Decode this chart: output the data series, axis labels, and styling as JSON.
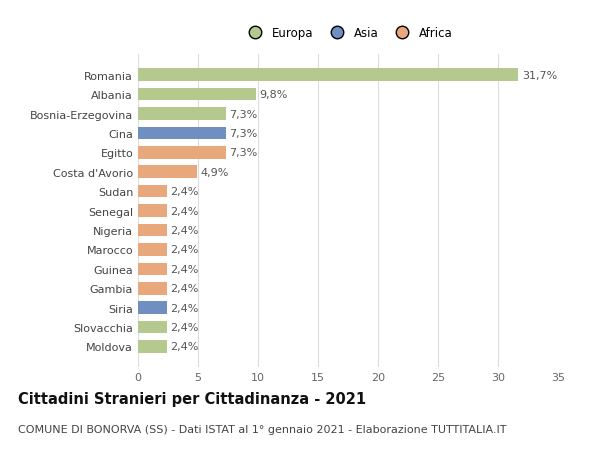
{
  "categories": [
    "Moldova",
    "Slovacchia",
    "Siria",
    "Gambia",
    "Guinea",
    "Marocco",
    "Nigeria",
    "Senegal",
    "Sudan",
    "Costa d'Avorio",
    "Egitto",
    "Cina",
    "Bosnia-Erzegovina",
    "Albania",
    "Romania"
  ],
  "values": [
    2.4,
    2.4,
    2.4,
    2.4,
    2.4,
    2.4,
    2.4,
    2.4,
    2.4,
    4.9,
    7.3,
    7.3,
    7.3,
    9.8,
    31.7
  ],
  "labels": [
    "2,4%",
    "2,4%",
    "2,4%",
    "2,4%",
    "2,4%",
    "2,4%",
    "2,4%",
    "2,4%",
    "2,4%",
    "4,9%",
    "7,3%",
    "7,3%",
    "7,3%",
    "9,8%",
    "31,7%"
  ],
  "colors": [
    "#b5c98e",
    "#b5c98e",
    "#6e8fc0",
    "#e8a87c",
    "#e8a87c",
    "#e8a87c",
    "#e8a87c",
    "#e8a87c",
    "#e8a87c",
    "#e8a87c",
    "#e8a87c",
    "#6e8fc0",
    "#b5c98e",
    "#b5c98e",
    "#b5c98e"
  ],
  "legend": [
    {
      "label": "Europa",
      "color": "#b5c98e"
    },
    {
      "label": "Asia",
      "color": "#6e8fc0"
    },
    {
      "label": "Africa",
      "color": "#e8a87c"
    }
  ],
  "xlim": [
    0,
    35
  ],
  "xticks": [
    0,
    5,
    10,
    15,
    20,
    25,
    30,
    35
  ],
  "title": "Cittadini Stranieri per Cittadinanza - 2021",
  "subtitle": "COMUNE DI BONORVA (SS) - Dati ISTAT al 1° gennaio 2021 - Elaborazione TUTTITALIA.IT",
  "background_color": "#ffffff",
  "grid_color": "#dddddd",
  "bar_height": 0.65,
  "label_fontsize": 8.0,
  "tick_fontsize": 8.0,
  "title_fontsize": 10.5,
  "subtitle_fontsize": 8.0
}
